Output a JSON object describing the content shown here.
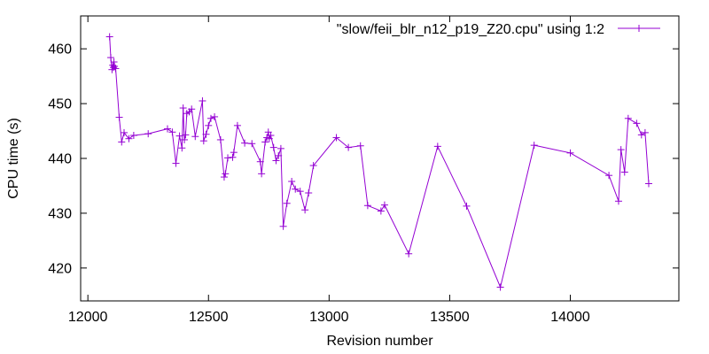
{
  "chart_data": {
    "type": "line",
    "title": "",
    "xlabel": "Revision number",
    "ylabel": "CPU time (s)",
    "xlim": [
      11970,
      14450
    ],
    "ylim": [
      414,
      466
    ],
    "x_ticks": [
      12000,
      12500,
      13000,
      13500,
      14000
    ],
    "y_ticks": [
      420,
      430,
      440,
      450,
      460
    ],
    "grid": false,
    "legend_position": "top-right",
    "marker": "plus",
    "series": [
      {
        "name": "\"slow/feii_blr_n12_p19_Z20.cpu\" using 1:2",
        "color": "#9400d3",
        "points": [
          [
            12090,
            462.2
          ],
          [
            12095,
            458.4
          ],
          [
            12100,
            456.2
          ],
          [
            12103,
            457.0
          ],
          [
            12106,
            456.6
          ],
          [
            12108,
            457.6
          ],
          [
            12110,
            456.8
          ],
          [
            12115,
            456.4
          ],
          [
            12130,
            447.5
          ],
          [
            12140,
            443.0
          ],
          [
            12150,
            444.7
          ],
          [
            12170,
            443.6
          ],
          [
            12190,
            444.2
          ],
          [
            12250,
            444.5
          ],
          [
            12330,
            445.4
          ],
          [
            12350,
            444.8
          ],
          [
            12365,
            439.1
          ],
          [
            12380,
            444.1
          ],
          [
            12390,
            441.9
          ],
          [
            12395,
            449.2
          ],
          [
            12400,
            443.4
          ],
          [
            12405,
            444.3
          ],
          [
            12410,
            448.2
          ],
          [
            12420,
            448.5
          ],
          [
            12430,
            449.0
          ],
          [
            12445,
            444.0
          ],
          [
            12475,
            450.5
          ],
          [
            12480,
            443.2
          ],
          [
            12490,
            444.4
          ],
          [
            12500,
            446.0
          ],
          [
            12510,
            447.3
          ],
          [
            12525,
            447.6
          ],
          [
            12550,
            443.4
          ],
          [
            12565,
            436.6
          ],
          [
            12570,
            437.2
          ],
          [
            12580,
            440.1
          ],
          [
            12600,
            440.2
          ],
          [
            12605,
            441.1
          ],
          [
            12620,
            446.0
          ],
          [
            12650,
            442.8
          ],
          [
            12680,
            442.7
          ],
          [
            12715,
            439.4
          ],
          [
            12720,
            437.2
          ],
          [
            12735,
            443.0
          ],
          [
            12742,
            443.8
          ],
          [
            12748,
            444.8
          ],
          [
            12752,
            443.6
          ],
          [
            12758,
            444.2
          ],
          [
            12770,
            442.0
          ],
          [
            12780,
            439.6
          ],
          [
            12790,
            440.5
          ],
          [
            12800,
            441.8
          ],
          [
            12810,
            427.6
          ],
          [
            12825,
            431.8
          ],
          [
            12845,
            435.8
          ],
          [
            12860,
            434.4
          ],
          [
            12880,
            434.0
          ],
          [
            12900,
            430.6
          ],
          [
            12915,
            433.7
          ],
          [
            12935,
            438.7
          ],
          [
            13030,
            443.8
          ],
          [
            13080,
            442.0
          ],
          [
            13130,
            442.3
          ],
          [
            13160,
            431.4
          ],
          [
            13215,
            430.4
          ],
          [
            13230,
            431.5
          ],
          [
            13330,
            422.6
          ],
          [
            13450,
            442.2
          ],
          [
            13570,
            431.3
          ],
          [
            13710,
            416.5
          ],
          [
            13850,
            442.4
          ],
          [
            14000,
            441.0
          ],
          [
            14160,
            436.9
          ],
          [
            14200,
            432.2
          ],
          [
            14210,
            441.6
          ],
          [
            14225,
            437.5
          ],
          [
            14240,
            447.3
          ],
          [
            14275,
            446.4
          ],
          [
            14295,
            444.3
          ],
          [
            14310,
            444.7
          ],
          [
            14325,
            435.4
          ]
        ]
      }
    ]
  }
}
